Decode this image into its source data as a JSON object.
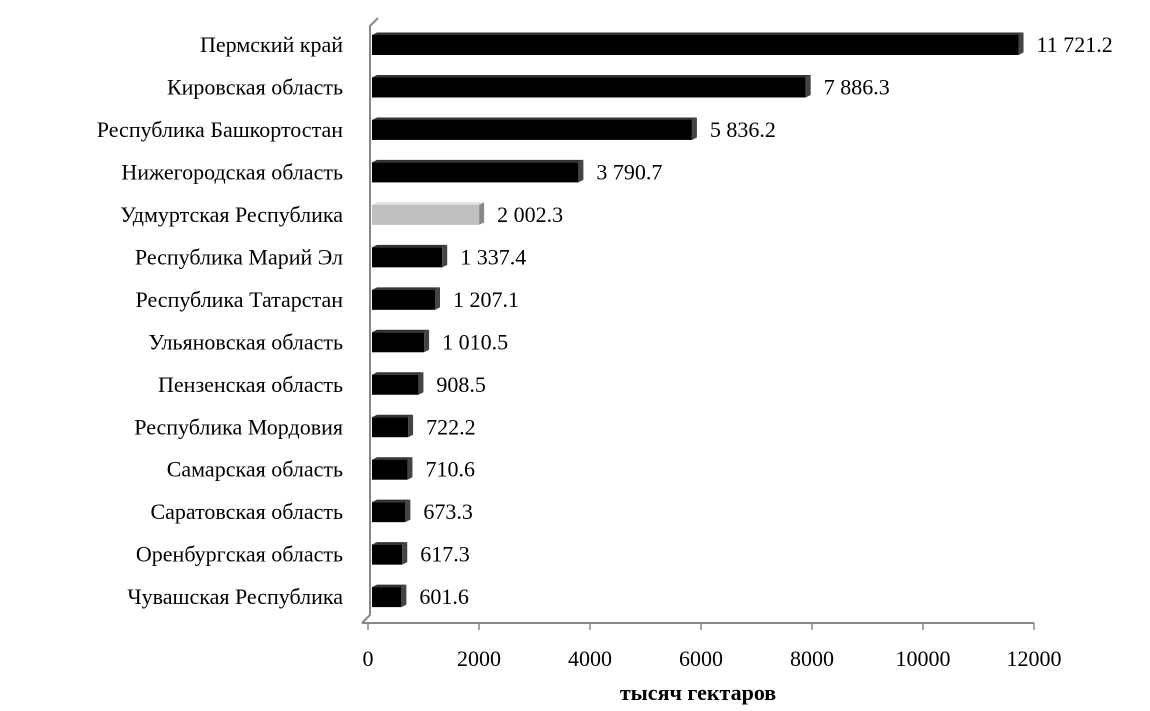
{
  "chart_data": {
    "type": "bar",
    "orientation": "horizontal",
    "x_label": "тысяч гектаров",
    "categories": [
      "Пермский край",
      "Кировская область",
      "Республика Башкортостан",
      "Нижегородская область",
      "Удмуртская Республика",
      "Республика Марий Эл",
      "Республика Татарстан",
      "Ульяновская область",
      "Пензенская область",
      "Республика Мордовия",
      "Самарская область",
      "Саратовская область",
      "Оренбургская область",
      "Чувашская Республика"
    ],
    "values": [
      11721.2,
      7886.3,
      5836.2,
      3790.7,
      2002.3,
      1337.4,
      1207.1,
      1010.5,
      908.5,
      722.2,
      710.6,
      673.3,
      617.3,
      601.6
    ],
    "value_labels": [
      "11 721.2",
      "7 886.3",
      "5 836.2",
      "3 790.7",
      "2 002.3",
      "1 337.4",
      "1 207.1",
      "1 010.5",
      "908.5",
      "722.2",
      "710.6",
      "673.3",
      "617.3",
      "601.6"
    ],
    "colors": [
      "#000000",
      "#000000",
      "#000000",
      "#000000",
      "#c0c0c0",
      "#000000",
      "#000000",
      "#000000",
      "#000000",
      "#000000",
      "#000000",
      "#000000",
      "#000000",
      "#000000"
    ],
    "xlim": [
      0,
      12000
    ],
    "xticks": [
      0,
      2000,
      4000,
      6000,
      8000,
      10000,
      12000
    ]
  }
}
